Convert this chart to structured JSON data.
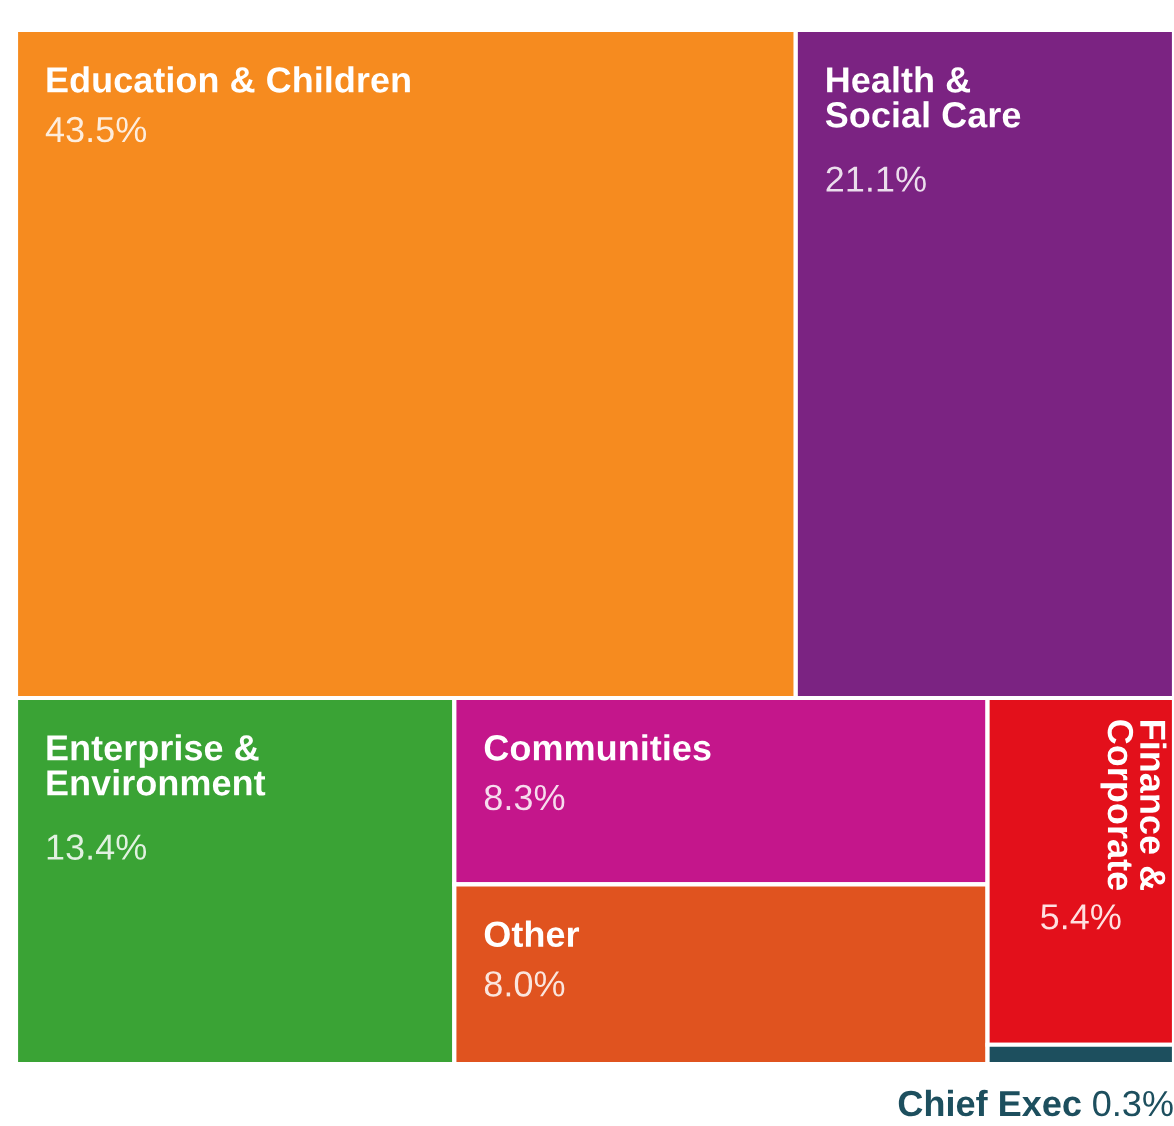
{
  "chart_data": {
    "type": "other",
    "categories": [
      "Education & Children",
      "Health & Social Care",
      "Enterprise & Environment",
      "Communities",
      "Other",
      "Finance & Corporate",
      "Chief Exec"
    ],
    "values": [
      43.5,
      21.1,
      13.4,
      8.3,
      8.0,
      5.4,
      0.3
    ],
    "value_labels": [
      "43.5%",
      "21.1%",
      "13.4%",
      "8.3%",
      "8.0%",
      "5.4%",
      "0.3%"
    ],
    "colors": [
      "#f68b1f",
      "#7b2382",
      "#3aa335",
      "#c4168b",
      "#e0531f",
      "#e3101b",
      "#1d4f5e"
    ]
  }
}
